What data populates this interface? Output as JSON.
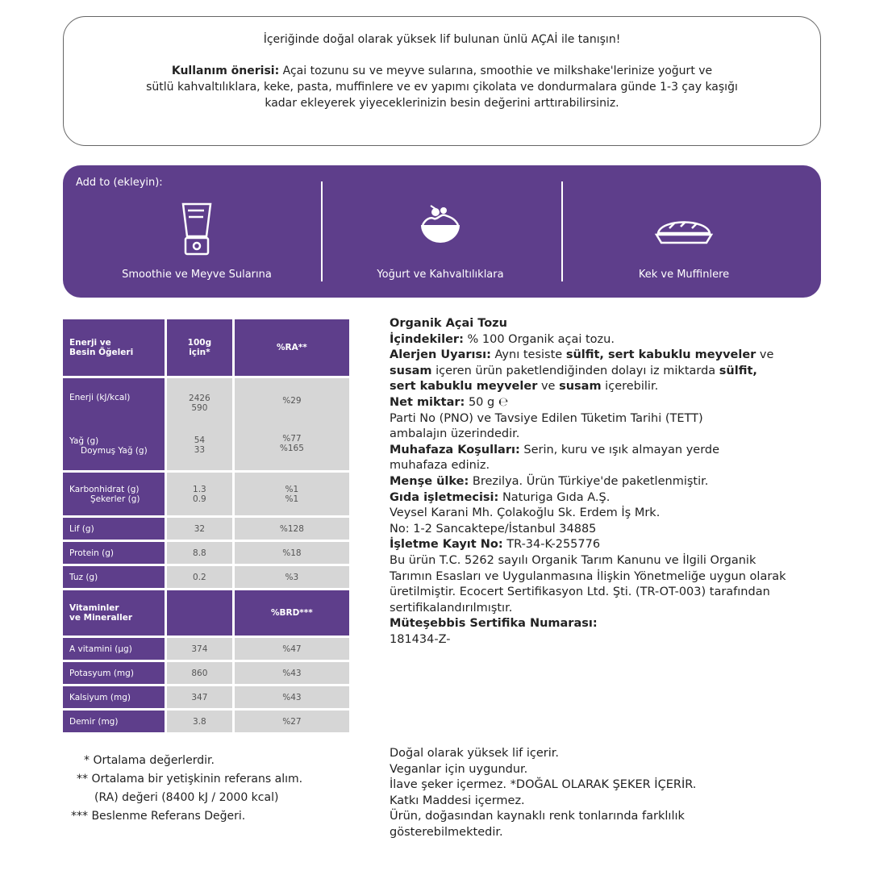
{
  "intro": {
    "headline": "İçeriğinde doğal olarak yüksek lif bulunan ünlü AÇAİ ile tanışın!",
    "usage_label": "Kullanım önerisi:",
    "usage_line1": " Açai tozunu su ve meyve sularına, smoothie ve milkshake'lerinize yoğurt ve",
    "usage_line2": "sütlü kahvaltılıklara, keke, pasta, muffinlere ve ev yapımı çikolata ve dondurmalara günde 1-3 çay kaşığı",
    "usage_line3": "kadar ekleyerek yiyeceklerinizin besin değerini arttırabilirsiniz."
  },
  "band": {
    "title": "Add to (ekleyin):",
    "items": [
      {
        "label": "Smoothie ve Meyve Sularına",
        "icon": "blender-icon"
      },
      {
        "label": "Yoğurt ve Kahvaltılıklara",
        "icon": "bowl-icon"
      },
      {
        "label": "Kek ve Muffinlere",
        "icon": "pie-icon"
      }
    ],
    "color": "#5e3e8b"
  },
  "table": {
    "header": [
      "Enerji ve\nBesin Öğeleri",
      "100g\niçin*",
      "%RA**"
    ],
    "energy": {
      "label": "Enerji (kJ/kcal)",
      "v1": "2426",
      "v2": "590",
      "ra": "%29"
    },
    "fat": {
      "label": "Yağ (g)",
      "value": "54",
      "ra": "%77"
    },
    "satfat": {
      "label": "Doymuş Yağ (g)",
      "value": "33",
      "ra": "%165"
    },
    "carb": {
      "label": "Karbonhidrat (g)",
      "value": "1.3",
      "ra": "%1"
    },
    "sugar": {
      "label": "Şekerler (g)",
      "value": "0.9",
      "ra": "%1"
    },
    "rows1": [
      {
        "label": "Lif (g)",
        "value": "32",
        "ra": "%128"
      },
      {
        "label": "Protein (g)",
        "value": "8.8",
        "ra": "%18"
      },
      {
        "label": "Tuz (g)",
        "value": "0.2",
        "ra": "%3"
      }
    ],
    "vit_header": [
      "Vitaminler\nve Mineraller",
      "%BRD***"
    ],
    "rows2": [
      {
        "label": "A vitamini (µg)",
        "value": "374",
        "ra": "%47"
      },
      {
        "label": "Potasyum (mg)",
        "value": "860",
        "ra": "%43"
      },
      {
        "label": "Kalsiyum (mg)",
        "value": "347",
        "ra": "%43"
      },
      {
        "label": "Demir (mg)",
        "value": "3.8",
        "ra": "%27"
      }
    ]
  },
  "footnotes": [
    "* Ortalama değerlerdir.",
    "** Ortalama bir yetişkinin referans alım.",
    "(RA) değeri (8400 kJ / 2000 kcal)",
    "*** Beslenme Referans Değeri."
  ],
  "info": [
    [
      {
        "t": "Organik Açai Tozu",
        "b": true
      }
    ],
    [
      {
        "t": "İçindekiler:",
        "b": true
      },
      {
        "t": " % 100 Organik açai tozu."
      }
    ],
    [
      {
        "t": "Alerjen Uyarısı:",
        "b": true
      },
      {
        "t": " Aynı tesiste "
      },
      {
        "t": "sülfit, sert kabuklu meyveler",
        "b": true
      },
      {
        "t": " ve"
      }
    ],
    [
      {
        "t": "susam",
        "b": true
      },
      {
        "t": " içeren ürün paketlendiğinden dolayı iz miktarda "
      },
      {
        "t": "sülfit,",
        "b": true
      }
    ],
    [
      {
        "t": "sert kabuklu meyveler",
        "b": true
      },
      {
        "t": " ve "
      },
      {
        "t": "susam",
        "b": true
      },
      {
        "t": " içerebilir."
      }
    ],
    [
      {
        "t": "Net miktar:",
        "b": true
      },
      {
        "t": " 50 g ℮"
      }
    ],
    [
      {
        "t": "Parti No (PNO) ve Tavsiye Edilen Tüketim Tarihi (TETT)"
      }
    ],
    [
      {
        "t": "ambalajın üzerindedir."
      }
    ],
    [
      {
        "t": "Muhafaza Koşulları:",
        "b": true
      },
      {
        "t": " Serin, kuru ve ışık almayan yerde"
      }
    ],
    [
      {
        "t": "muhafaza ediniz."
      }
    ],
    [
      {
        "t": "Menşe ülke:",
        "b": true
      },
      {
        "t": " Brezilya. Ürün Türkiye'de paketlenmiştir."
      }
    ],
    [
      {
        "t": "Gıda işletmecisi:",
        "b": true
      },
      {
        "t": " Naturiga Gıda A.Ş."
      }
    ],
    [
      {
        "t": "Veysel Karani Mh. Çolakoğlu Sk. Erdem İş Mrk."
      }
    ],
    [
      {
        "t": "No: 1-2 Sancaktepe/İstanbul 34885"
      }
    ],
    [
      {
        "t": "İşletme Kayıt No:",
        "b": true
      },
      {
        "t": " TR-34-K-255776"
      }
    ],
    [
      {
        "t": "Bu ürün T.C. 5262 sayılı Organik Tarım Kanunu ve İlgili Organik"
      }
    ],
    [
      {
        "t": "Tarımın Esasları ve Uygulanmasına İlişkin Yönetmeliğe uygun olarak"
      }
    ],
    [
      {
        "t": "üretilmiştir. Ecocert Sertifikasyon Ltd. Şti. (TR-OT-003) tarafından"
      }
    ],
    [
      {
        "t": "sertifikalandırılmıştır."
      }
    ],
    [
      {
        "t": "Müteşebbis Sertifika Numarası:",
        "b": true
      }
    ],
    [
      {
        "t": "181434-Z-"
      }
    ]
  ],
  "claims": [
    "Doğal olarak yüksek lif içerir.",
    "Veganlar için uygundur.",
    "İlave şeker içermez. *DOĞAL OLARAK ŞEKER İÇERİR.",
    "Katkı Maddesi içermez.",
    "Ürün, doğasından kaynaklı renk tonlarında farklılık",
    "gösterebilmektedir."
  ]
}
